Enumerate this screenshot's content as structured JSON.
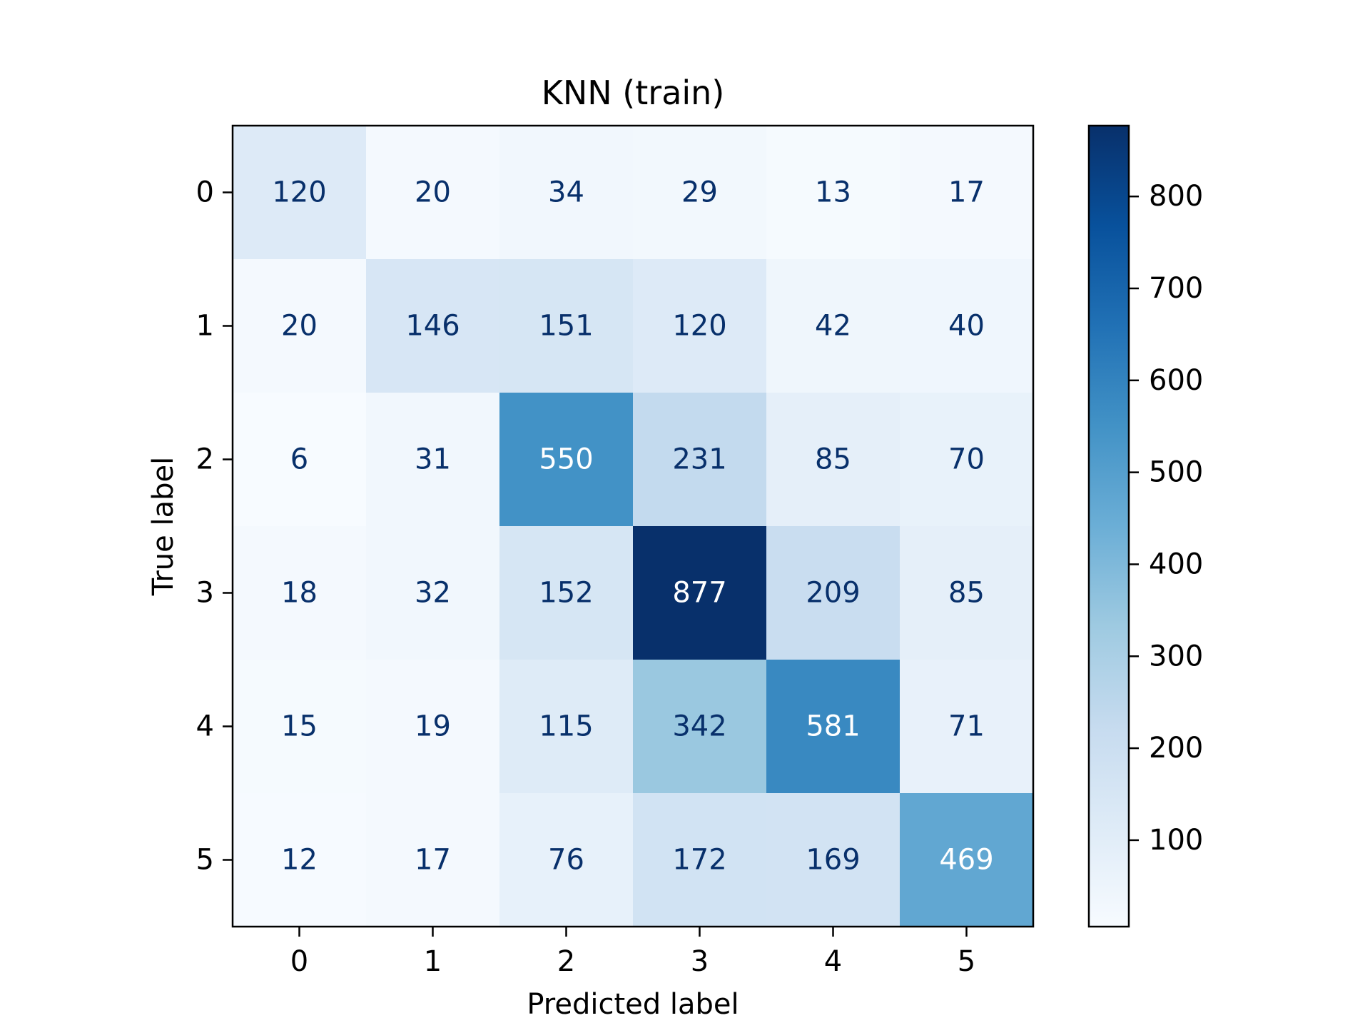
{
  "chart_data": {
    "type": "heatmap",
    "title": "KNN (train)",
    "xlabel": "Predicted label",
    "ylabel": "True label",
    "x_categories": [
      "0",
      "1",
      "2",
      "3",
      "4",
      "5"
    ],
    "y_categories": [
      "0",
      "1",
      "2",
      "3",
      "4",
      "5"
    ],
    "matrix": [
      [
        120,
        20,
        34,
        29,
        13,
        17
      ],
      [
        20,
        146,
        151,
        120,
        42,
        40
      ],
      [
        6,
        31,
        550,
        231,
        85,
        70
      ],
      [
        18,
        32,
        152,
        877,
        209,
        85
      ],
      [
        15,
        19,
        115,
        342,
        581,
        71
      ],
      [
        12,
        17,
        76,
        172,
        169,
        469
      ]
    ],
    "colormap": "Blues",
    "value_range": [
      6,
      877
    ],
    "colorbar": {
      "ticks": [
        100,
        200,
        300,
        400,
        500,
        600,
        700,
        800
      ],
      "tick_labels": [
        "100",
        "200",
        "300",
        "400",
        "500",
        "600",
        "700",
        "800"
      ]
    },
    "grid": false,
    "colors": {
      "low": "#f7fbff",
      "high": "#08306b",
      "text_dark": "#08306b",
      "text_light": "#ffffff"
    }
  }
}
